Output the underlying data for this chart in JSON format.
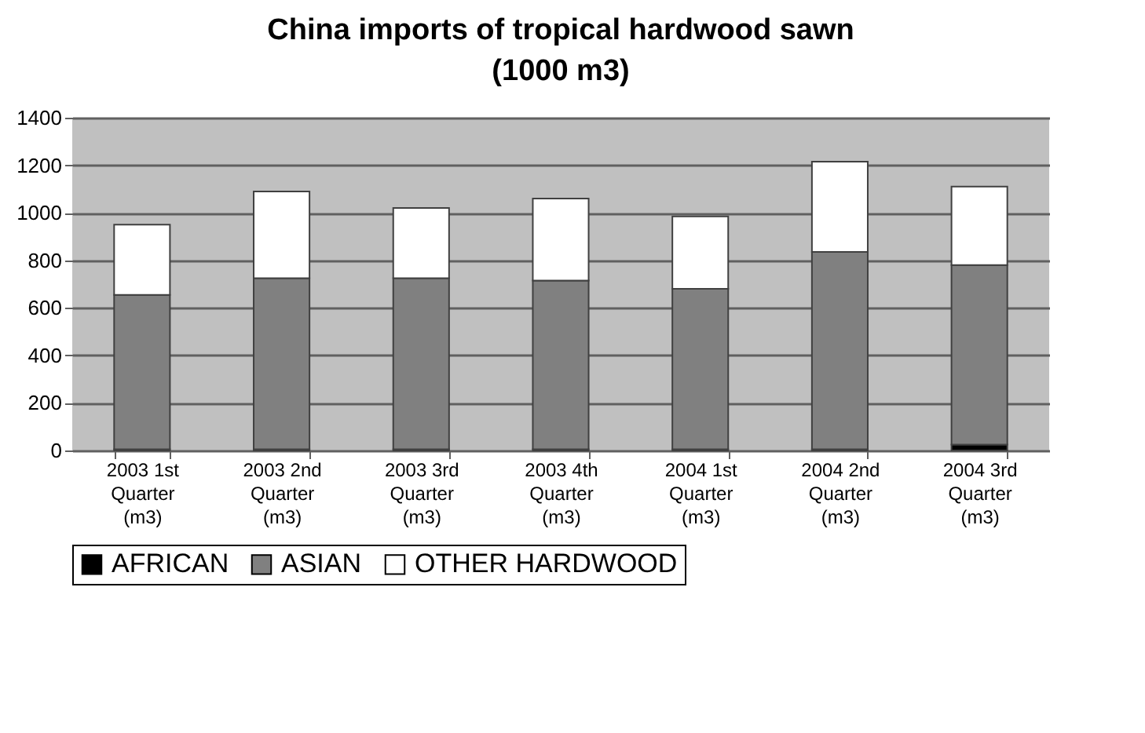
{
  "chart_data": {
    "type": "bar",
    "title": "China imports of tropical hardwood sawn",
    "subtitle": "(1000 m3)",
    "stacked": true,
    "categories": [
      "2003 1st Quarter (m3)",
      "2003 2nd Quarter (m3)",
      "2003 3rd Quarter (m3)",
      "2003 4th Quarter (m3)",
      "2004 1st Quarter (m3)",
      "2004 2nd Quarter (m3)",
      "2004 3rd Quarter (m3)"
    ],
    "series": [
      {
        "name": "AFRICAN",
        "color": "#000000",
        "values": [
          5,
          5,
          5,
          5,
          5,
          5,
          25
        ]
      },
      {
        "name": "ASIAN",
        "color": "#808080",
        "values": [
          650,
          720,
          720,
          710,
          675,
          830,
          755
        ]
      },
      {
        "name": "OTHER HARDWOOD",
        "color": "#ffffff",
        "values": [
          295,
          365,
          295,
          345,
          305,
          380,
          330
        ]
      }
    ],
    "ylim": [
      0,
      1400
    ],
    "yticks": [
      0,
      200,
      400,
      600,
      800,
      1000,
      1200,
      1400
    ],
    "grid": "y",
    "legend": "bottom"
  }
}
